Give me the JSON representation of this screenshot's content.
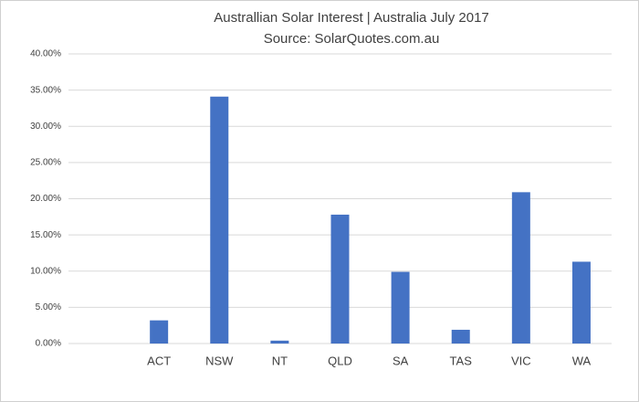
{
  "chart_data": {
    "type": "bar",
    "title": "Australlian Solar Interest | Australia July 2017",
    "subtitle": "Source: SolarQuotes.com.au",
    "categories": [
      null,
      "ACT",
      "NSW",
      "NT",
      "QLD",
      "SA",
      "TAS",
      "VIC",
      "WA"
    ],
    "values": [
      null,
      3.2,
      34.1,
      0.4,
      17.8,
      9.9,
      1.9,
      20.9,
      11.3
    ],
    "color": "#4472c4",
    "ylim": [
      0,
      40
    ],
    "yticks": [
      {
        "value": 0,
        "label": "0.00%"
      },
      {
        "value": 5,
        "label": "5.00%"
      },
      {
        "value": 10,
        "label": "10.00%"
      },
      {
        "value": 15,
        "label": "15.00%"
      },
      {
        "value": 20,
        "label": "20.00%"
      },
      {
        "value": 25,
        "label": "25.00%"
      },
      {
        "value": 30,
        "label": "30.00%"
      },
      {
        "value": 35,
        "label": "35.00%"
      },
      {
        "value": 40,
        "label": "40.00%"
      }
    ],
    "grid": true
  }
}
